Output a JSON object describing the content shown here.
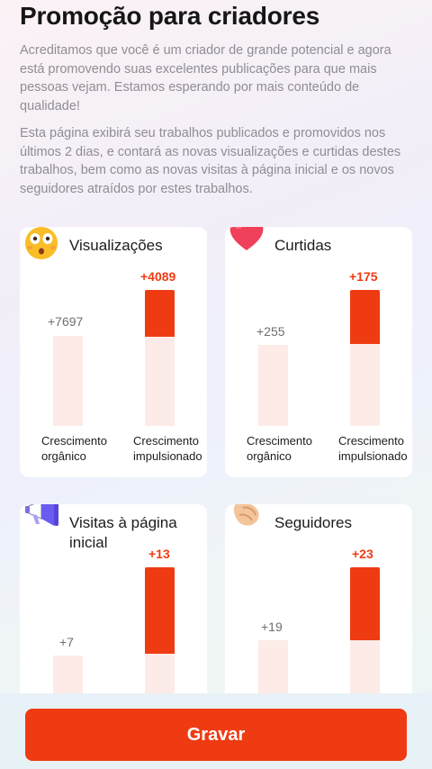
{
  "page": {
    "title": "Promoção para criadores",
    "intro": "Acreditamos que você é um criador de grande potencial e agora está promovendo suas excelentes publicações para que mais pessoas vejam. Estamos esperando por mais conteúdo de qualidade!",
    "description": "Esta página exibirá seu trabalhos publicados e promovidos nos últimos 2 dias, e contará as novas visualizações e curtidas destes trabalhos, bem como as novas visitas à página inicial e os novos seguidores atraídos por estes trabalhos."
  },
  "captions": {
    "organic": "Crescimento orgânico",
    "boosted": "Crescimento impulsionado"
  },
  "cards": [
    {
      "title": "Visualizações",
      "icon": "astonished-face-icon",
      "organic": "+7697",
      "boosted": "+4089"
    },
    {
      "title": "Curtidas",
      "icon": "heart-icon",
      "organic": "+255",
      "boosted": "+175"
    },
    {
      "title": "Visitas à página inicial",
      "icon": "megaphone-icon",
      "organic": "+7",
      "boosted": "+13"
    },
    {
      "title": "Seguidores",
      "icon": "handshake-icon",
      "organic": "+19",
      "boosted": "+23"
    }
  ],
  "footer": {
    "button_label": "Gravar"
  },
  "colors": {
    "accent": "#ef3b12",
    "bar_background": "#fdebe7"
  }
}
